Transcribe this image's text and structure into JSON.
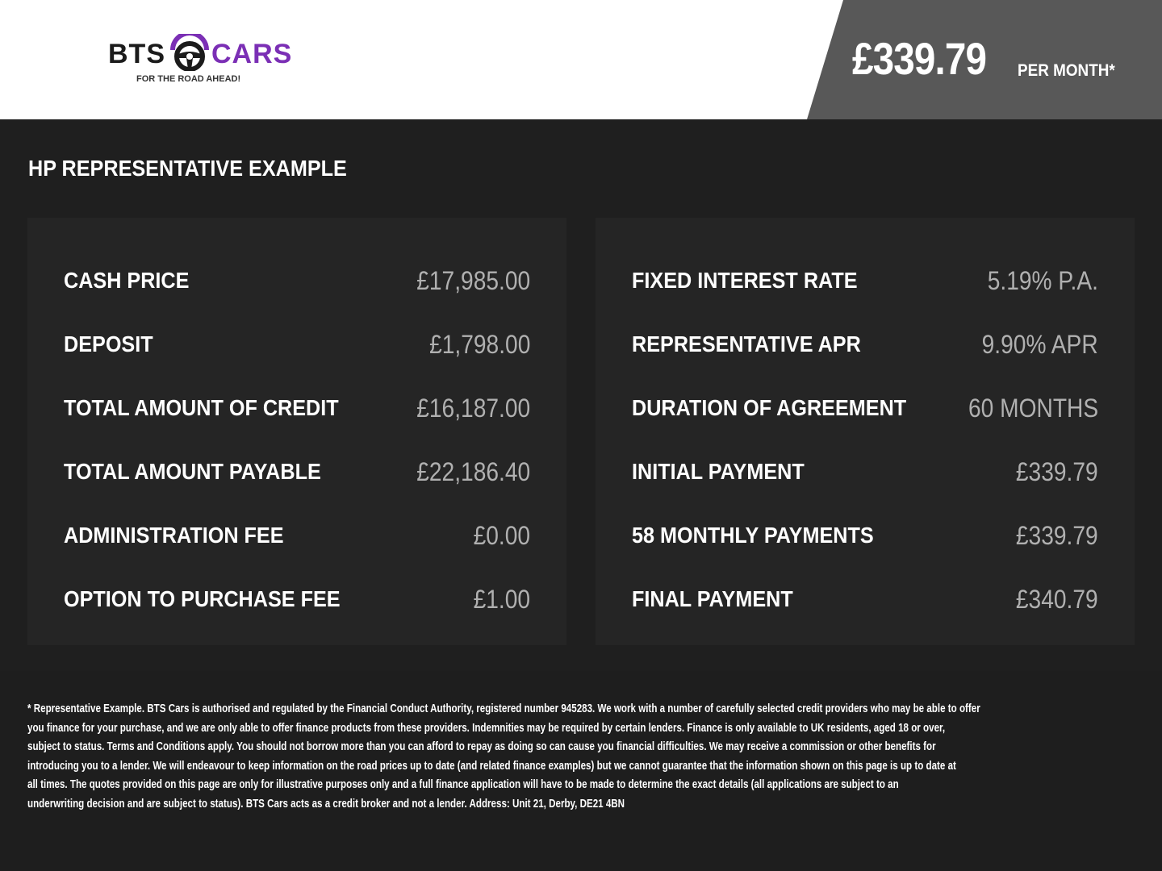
{
  "brand": {
    "name_left": "BTS",
    "name_right": "CARS",
    "tagline": "FOR THE ROAD AHEAD!",
    "accent": "#7b2fb5",
    "icon": "steering-wheel-icon"
  },
  "header": {
    "price": "£339.79",
    "per_month": "PER MONTH*"
  },
  "title": "HP REPRESENTATIVE EXAMPLE",
  "left": [
    {
      "label": "CASH PRICE",
      "value": "£17,985.00"
    },
    {
      "label": "DEPOSIT",
      "value": "£1,798.00"
    },
    {
      "label": "TOTAL AMOUNT OF CREDIT",
      "value": "£16,187.00"
    },
    {
      "label": "TOTAL AMOUNT PAYABLE",
      "value": "£22,186.40"
    },
    {
      "label": "ADMINISTRATION FEE",
      "value": "£0.00"
    },
    {
      "label": "OPTION TO PURCHASE FEE",
      "value": "£1.00"
    }
  ],
  "right": [
    {
      "label": "FIXED INTEREST RATE",
      "value": "5.19% P.A."
    },
    {
      "label": "REPRESENTATIVE APR",
      "value": "9.90% APR"
    },
    {
      "label": "DURATION OF AGREEMENT",
      "value": "60 MONTHS"
    },
    {
      "label": "INITIAL PAYMENT",
      "value": "£339.79"
    },
    {
      "label": "58 MONTHLY PAYMENTS",
      "value": "£339.79"
    },
    {
      "label": "FINAL PAYMENT",
      "value": "£340.79"
    }
  ],
  "disclaimer": [
    "* Representative Example. BTS Cars is authorised and regulated by the Financial Conduct Authority, registered number 945283. We work with a number of carefully selected credit providers who may be able to offer",
    "you finance for your purchase, and we are only able to offer finance products from these providers. Indemnities may be required by certain lenders. Finance is only available to UK residents, aged 18 or over,",
    "subject to status. Terms and Conditions apply. You should not borrow more than you can afford to repay as doing so can cause you financial difficulties. We may receive a commission or other benefits for",
    "introducing you to a lender. We will endeavour to keep information on the road prices up to date (and related finance examples) but we cannot guarantee that the information shown on this page is up to date at",
    "all times. The quotes provided on this page are only for illustrative purposes only and a full finance application will have to be made to determine the exact details (all applications are subject to an",
    "underwriting decision and are subject to status). BTS Cars acts as a credit broker and not a lender. Address: Unit 21, Derby, DE21 4BN"
  ]
}
